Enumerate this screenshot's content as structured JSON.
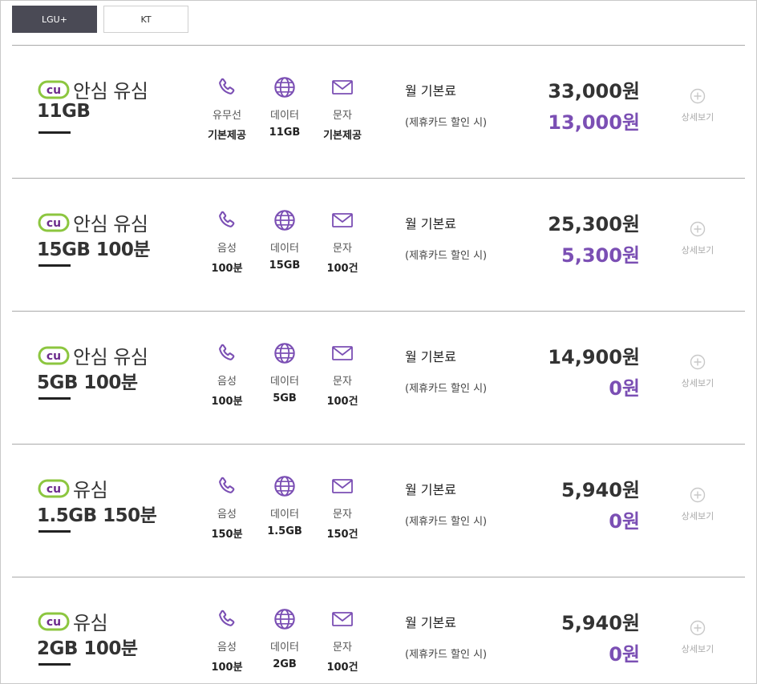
{
  "tabs": [
    {
      "label": "LGU+",
      "active": true
    },
    {
      "label": "KT",
      "active": false
    }
  ],
  "colors": {
    "accent": "#7b4fb4",
    "logo_green": "#8cc63f",
    "logo_purple": "#6b2a8c",
    "active_tab": "#4a4a55"
  },
  "common": {
    "fee_label": "월 기본료",
    "fee_note": "(제휴카드 할인 시)",
    "detail_label": "상세보기",
    "logo_text": "cu"
  },
  "plans": [
    {
      "name": "안심 유심",
      "spec": "11GB",
      "features": [
        {
          "icon": "phone-icon",
          "label": "유무선",
          "value": "기본제공"
        },
        {
          "icon": "globe-icon",
          "label": "데이터",
          "value": "11GB"
        },
        {
          "icon": "mail-icon",
          "label": "문자",
          "value": "기본제공"
        }
      ],
      "price": "33,000원",
      "discount_price": "13,000원"
    },
    {
      "name": "안심 유심",
      "spec": "15GB  100분",
      "features": [
        {
          "icon": "phone-icon",
          "label": "음성",
          "value": "100분"
        },
        {
          "icon": "globe-icon",
          "label": "데이터",
          "value": "15GB"
        },
        {
          "icon": "mail-icon",
          "label": "문자",
          "value": "100건"
        }
      ],
      "price": "25,300원",
      "discount_price": "5,300원"
    },
    {
      "name": "안심 유심",
      "spec": "5GB  100분",
      "features": [
        {
          "icon": "phone-icon",
          "label": "음성",
          "value": "100분"
        },
        {
          "icon": "globe-icon",
          "label": "데이터",
          "value": "5GB"
        },
        {
          "icon": "mail-icon",
          "label": "문자",
          "value": "100건"
        }
      ],
      "price": "14,900원",
      "discount_price": "0원"
    },
    {
      "name": "유심",
      "spec": "1.5GB  150분",
      "features": [
        {
          "icon": "phone-icon",
          "label": "음성",
          "value": "150분"
        },
        {
          "icon": "globe-icon",
          "label": "데이터",
          "value": "1.5GB"
        },
        {
          "icon": "mail-icon",
          "label": "문자",
          "value": "150건"
        }
      ],
      "price": "5,940원",
      "discount_price": "0원"
    },
    {
      "name": "유심",
      "spec": "2GB  100분",
      "features": [
        {
          "icon": "phone-icon",
          "label": "음성",
          "value": "100분"
        },
        {
          "icon": "globe-icon",
          "label": "데이터",
          "value": "2GB"
        },
        {
          "icon": "mail-icon",
          "label": "문자",
          "value": "100건"
        }
      ],
      "price": "5,940원",
      "discount_price": "0원"
    }
  ]
}
